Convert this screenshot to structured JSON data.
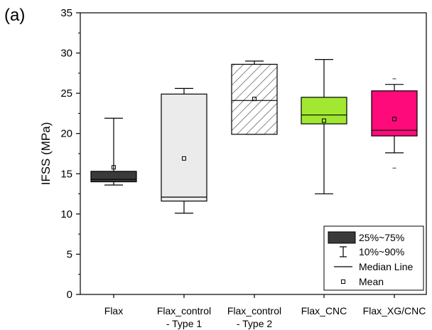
{
  "panel_label": "(a)",
  "chart_data": {
    "type": "box",
    "ylabel": "IFSS (MPa)",
    "xlabel": "",
    "ylim": [
      0,
      35
    ],
    "yticks": [
      0,
      5,
      10,
      15,
      20,
      25,
      30,
      35
    ],
    "categories": [
      {
        "line1": "Flax",
        "line2": ""
      },
      {
        "line1": "Flax_control",
        "line2": "- Type 1"
      },
      {
        "line1": "Flax_control",
        "line2": "- Type 2"
      },
      {
        "line1": "Flax_CNC",
        "line2": ""
      },
      {
        "line1": "Flax_XG/CNC",
        "line2": ""
      }
    ],
    "boxes": [
      {
        "p10": 13.6,
        "q1": 14.0,
        "median": 14.3,
        "q3": 15.3,
        "p90": 21.9,
        "mean": 15.8,
        "outliers": [],
        "fill": "#3a3a3a",
        "pattern": "none"
      },
      {
        "p10": 10.1,
        "q1": 11.6,
        "median": 12.1,
        "q3": 24.9,
        "p90": 25.6,
        "mean": 16.9,
        "outliers": [],
        "fill": "#ebebeb",
        "pattern": "none"
      },
      {
        "p10": 19.9,
        "q1": 19.9,
        "median": 24.1,
        "q3": 28.6,
        "p90": 29.0,
        "mean": 24.3,
        "outliers": [],
        "fill": "#ffffff",
        "pattern": "hatch"
      },
      {
        "p10": 12.5,
        "q1": 21.2,
        "median": 22.3,
        "q3": 24.5,
        "p90": 29.2,
        "mean": 21.6,
        "outliers": [],
        "fill": "#a2e832",
        "pattern": "none"
      },
      {
        "p10": 17.6,
        "q1": 19.7,
        "median": 20.4,
        "q3": 25.3,
        "p90": 26.1,
        "mean": 21.8,
        "outliers": [
          15.7,
          26.8
        ],
        "fill": "#ff0a7a",
        "pattern": "none"
      }
    ],
    "legend": {
      "placement": "bottom-right",
      "items": [
        {
          "kind": "box",
          "label": "25%~75%"
        },
        {
          "kind": "whisker",
          "label": "10%~90%"
        },
        {
          "kind": "median",
          "label": "Median Line"
        },
        {
          "kind": "mean",
          "label": "Mean"
        }
      ]
    },
    "grid": false
  }
}
